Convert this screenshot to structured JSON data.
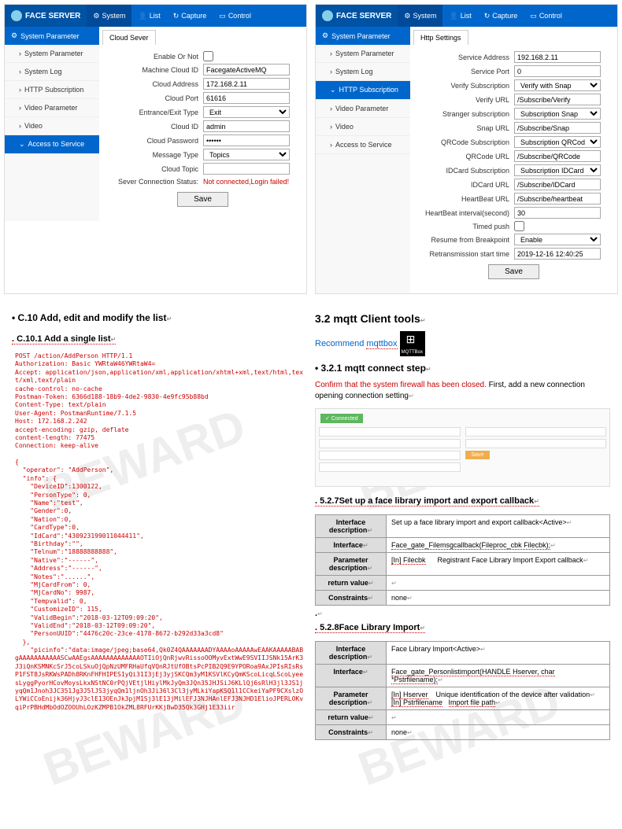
{
  "watermark": "BEWARD",
  "app": {
    "brand": "FACE SERVER",
    "nav": [
      "System",
      "List",
      "Capture",
      "Control"
    ],
    "sidebar_header": "System Parameter",
    "sidebar_items": [
      "System Parameter",
      "System Log",
      "HTTP Subscription",
      "Video Parameter",
      "Video",
      "Access to Service"
    ]
  },
  "cloud": {
    "tab": "Cloud Sever",
    "fields": {
      "enable": "Enable Or Not",
      "machine_id": "Machine Cloud ID",
      "machine_id_val": "FacegateActiveMQ",
      "address": "Cloud Address",
      "address_val": "172.168.2.11",
      "port": "Cloud Port",
      "port_val": "61616",
      "ee_type": "Entrance/Exit Type",
      "ee_type_val": "Exit",
      "cid": "Cloud ID",
      "cid_val": "admin",
      "cpwd": "Cloud Password",
      "cpwd_val": "••••••",
      "mtype": "Message Type",
      "mtype_val": "Topics",
      "ctopic": "Cloud Topic",
      "status": "Sever Connection Status:",
      "status_val": "Not connected,Login failed!"
    },
    "save": "Save"
  },
  "http": {
    "tab": "Http Settings",
    "fields": {
      "addr": "Service Address",
      "addr_val": "192.168.2.11",
      "port": "Service Port",
      "port_val": "0",
      "vsub": "Verify Subscription",
      "vsub_val": "Verify with Snap",
      "vurl": "Verify URL",
      "vurl_val": "/Subscribe/Verify",
      "ssub": "Stranger subscription",
      "ssub_val": "Subscription Snap",
      "surl": "Snap URL",
      "surl_val": "/Subscribe/Snap",
      "qsub": "QRCode Subscription",
      "qsub_val": "Subscription QRCode",
      "qurl": "QRCode URL",
      "qurl_val": "/Subscribe/QRCode",
      "isub": "IDCard Subscription",
      "isub_val": "Subscription IDCard",
      "iurl": "IDCard URL",
      "iurl_val": "/Subscribe/IDCard",
      "hurl": "HeartBeat URL",
      "hurl_val": "/Subscribe/heartbeat",
      "hint": "HeartBeat interval(second)",
      "hint_val": "30",
      "tpush": "Timed push",
      "resume": "Resume from Breakpoint",
      "resume_val": "Enable",
      "retrans": "Retransmission start time",
      "retrans_val": "2019-12-16 12:40:25"
    },
    "save": "Save"
  },
  "doc": {
    "c10_title": "C.10 Add, edit and modify the list",
    "c101_title": "C.10.1 Add a single list",
    "code": "POST /action/AddPerson HTTP/1.1\nAuthorization: Basic YWRtaW46YWRtaW4=\nAccept: application/json,application/xml,application/xhtml+xml,text/html,text/xml,text/plain\ncache-control: no-cache\nPostman-Token: 6366d188-18b9-4de2-9830-4e9fc95b88bd\nContent-Type: text/plain\nUser-Agent: PostmanRuntime/7.1.5\nHost: 172.168.2.242\naccept-encoding: gzip, deflate\ncontent-length: 77475\nConnection: keep-alive\n\n{\n  \"operator\": \"AddPerson\",\n  \"info\": {\n    \"DeviceID\":1300122,\n    \"PersonType\": 0,\n    \"Name\":\"test\",\n    \"Gender\":0,\n    \"Nation\":0,\n    \"CardType\":0,\n    \"IdCard\":\"430923199011044411\",\n    \"Birthday\":\"\",\n    \"Telnum\":\"18888888888\",\n    \"Native\":\"------\",\n    \"Address\":\"------\",\n    \"Notes\":\"......\",\n    \"MjCardFrom\": 0,\n    \"MjCardNo\": 9987,\n    \"Tempvalid\": 0,\n    \"CustomizeID\": 115,\n    \"ValidBegin\":\"2018-03-12T09:09:20\",\n    \"ValidEnd\":\"2018-03-12T09:09:20\",\n    \"PersonUUID\":\"4476c20c-23ce-4178-8672-b292d33a3cd8\"\n  },\n    \"picinfo\":\"data:image/jpeg;base64,Qk0Z4QAAAAAAADYAAAAoAAAAAwEAAKAAAAABABgAAAAAAAAAAASCwAAEgsAAAAAAAAAAAAAOTIiOjQnRjwvRissoOOMyvExtWwE9SVIIJSNk15ArK3J3iQnKSMNKcSrJ5coLSkuOjQpNzUMFRHaUfqVQnRJtUfOBtsPcPIB2Q9E9YPORoa9AxJPIsRIsRsP1FST8JsRKWsPADh8RKnFHFHIPES1yQi31I3jEj3yjSKCQm3yM1KSVlKCyQmKScoLicqLScoLyeesLyggPyorHCovMoysLkxNStNC0rPQjVEtjlHiylMkJyQm3JQn35JHJSiJ6KLlQj6sRlH3jl3JS1jyqQm1Jnoh3JC351Jg3J5lJS3jyqQm1ljnOh3Ji36l3Cl3jyMLkiYapKSQ1l1CCkeiYaPF9CXslzOLYWiCCoEnijk36HjyJ3clE13OEnJk3pjM1Sj3lE13jMilEFJ3NJHAnlEFJ3NJHD1ElioJPERLOKvqiPrPBHdMbOdOZOOUhLOzKZMPB1OkZML8RFUrKKjBwD35Qk3GHj1E33iir",
    "s32_title": "3.2    mqtt Client tools",
    "recommend": "Recommend",
    "mqttbox": "mqttbox",
    "mqtt_icon_label": "MQTTBox",
    "s321_title": "3.2.1 mqtt  connect step",
    "confirm_red": "Confirm that the system firewall has been closed.",
    "confirm_rest": " First, add a new connection opening connection setting",
    "s527_title": "5.2.7Set up a face library import and export callback",
    "t527": {
      "r1l": "Interface description",
      "r1v": "Set up a face library import and export callback<Active>",
      "r2l": "Interface",
      "r2v": "Face_gate_Filemsgcallback(Fileproc_cbk Filecbk);",
      "r3l": "Parameter description",
      "r3v1": "[In] Filecbk",
      "r3v2": "Registrant Face Library Import Export callback",
      "r4l": "return value",
      "r5l": "Constraints",
      "r5v": "none"
    },
    "s528_title": "5.2.8Face Library Import",
    "t528": {
      "r1l": "Interface description",
      "r1v": "Face Library Import<Active>",
      "r2l": "Interface",
      "r2v": "Face_gate_Personlistimport(HANDLE Hserver, char *Pstrfilename);",
      "r3l": "Parameter description",
      "r3v1": "[In] Hserver",
      "r3v2": "Unique identification of the device after validation",
      "r3v3": "[In] Pstrfilename",
      "r3v4": "Import file path",
      "r4l": "return value",
      "r5l": "Constraints",
      "r5v": "none"
    }
  }
}
